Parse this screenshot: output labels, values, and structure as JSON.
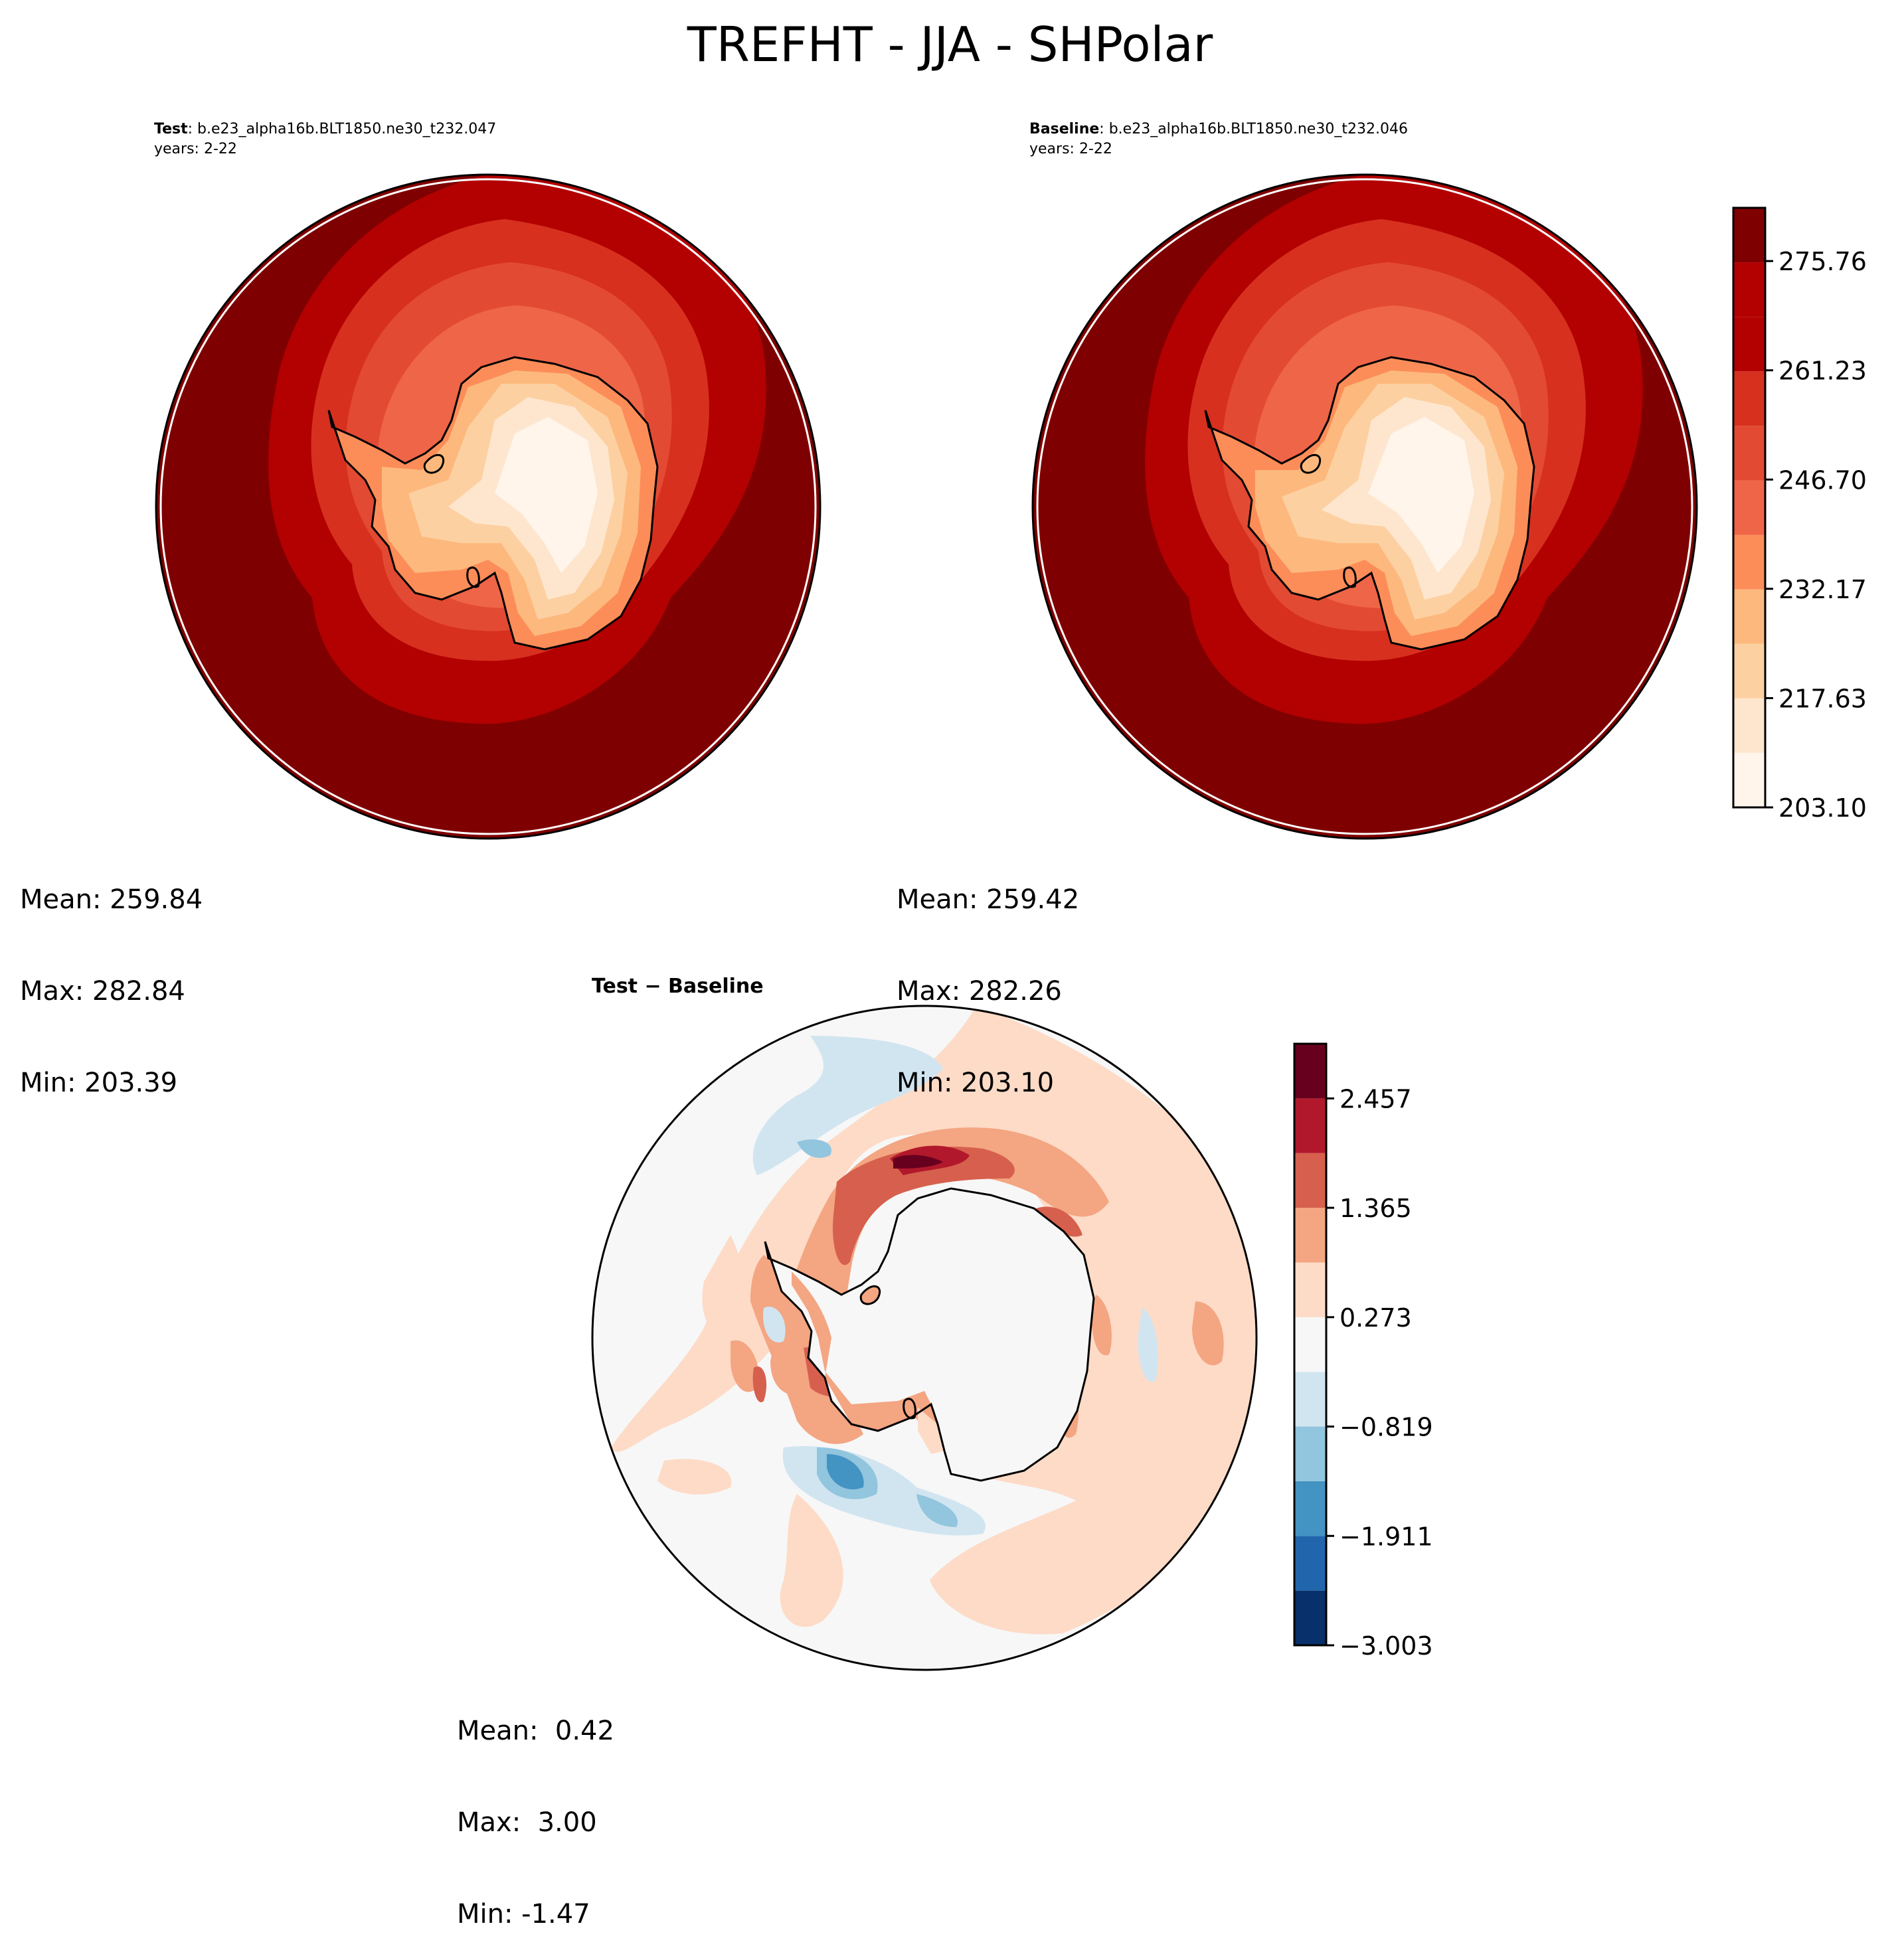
{
  "title": "TREFHT - JJA - SHPolar",
  "colors": {
    "temp": [
      "#fff5eb",
      "#fee6ce",
      "#fdd0a2",
      "#fdb97d",
      "#fc8d59",
      "#ef6548",
      "#e34a33",
      "#d7301f",
      "#b30000",
      "#7f0000"
    ],
    "diff": [
      "#08306b",
      "#2166ac",
      "#4393c3",
      "#92c5de",
      "#d1e5f0",
      "#f7f7f7",
      "#fddbc7",
      "#f4a582",
      "#d6604d",
      "#b2182b",
      "#67001f"
    ]
  },
  "panels": {
    "test": {
      "label": "Test",
      "case": ": b.e23_alpha16b.BLT1850.ne30_t232.047",
      "years": "years: 2-22",
      "stats": {
        "mean": "Mean: 259.84",
        "max": "Max: 282.84",
        "min": "Min: 203.39"
      }
    },
    "baseline": {
      "label": "Baseline",
      "case": ": b.e23_alpha16b.BLT1850.ne30_t232.046",
      "years": "years: 2-22",
      "stats": {
        "mean": "Mean: 259.42",
        "max": "Max: 282.26",
        "min": "Min: 203.10"
      }
    },
    "diff": {
      "title": "Test − Baseline",
      "stats": {
        "mean": "Mean:  0.42",
        "max": "Max:  3.00",
        "min": "Min: -1.47"
      }
    }
  },
  "chart_data": [
    {
      "type": "heatmap",
      "title": "Test",
      "projection": "south-polar-stereographic",
      "field": "TREFHT",
      "colorbar": {
        "ticks": [
          "203.10",
          "217.63",
          "232.17",
          "246.70",
          "261.23",
          "275.76"
        ],
        "tick_values": [
          203.1,
          217.63,
          232.17,
          246.7,
          261.23,
          275.76
        ],
        "range": [
          203.1,
          282.84
        ],
        "n_levels": 11
      },
      "mean": 259.84,
      "max": 282.84,
      "min": 203.39
    },
    {
      "type": "heatmap",
      "title": "Baseline",
      "projection": "south-polar-stereographic",
      "field": "TREFHT",
      "colorbar": "shared with Test",
      "mean": 259.42,
      "max": 282.26,
      "min": 203.1
    },
    {
      "type": "heatmap",
      "title": "Test − Baseline",
      "projection": "south-polar-stereographic",
      "colorbar": {
        "ticks": [
          "−3.003",
          "−1.911",
          "−0.819",
          "0.273",
          "1.365",
          "2.457"
        ],
        "tick_values": [
          -3.003,
          -1.911,
          -0.819,
          0.273,
          1.365,
          2.457
        ],
        "range": [
          -3.003,
          3.003
        ],
        "n_levels": 11
      },
      "mean": 0.42,
      "max": 3.0,
      "min": -1.47
    }
  ]
}
